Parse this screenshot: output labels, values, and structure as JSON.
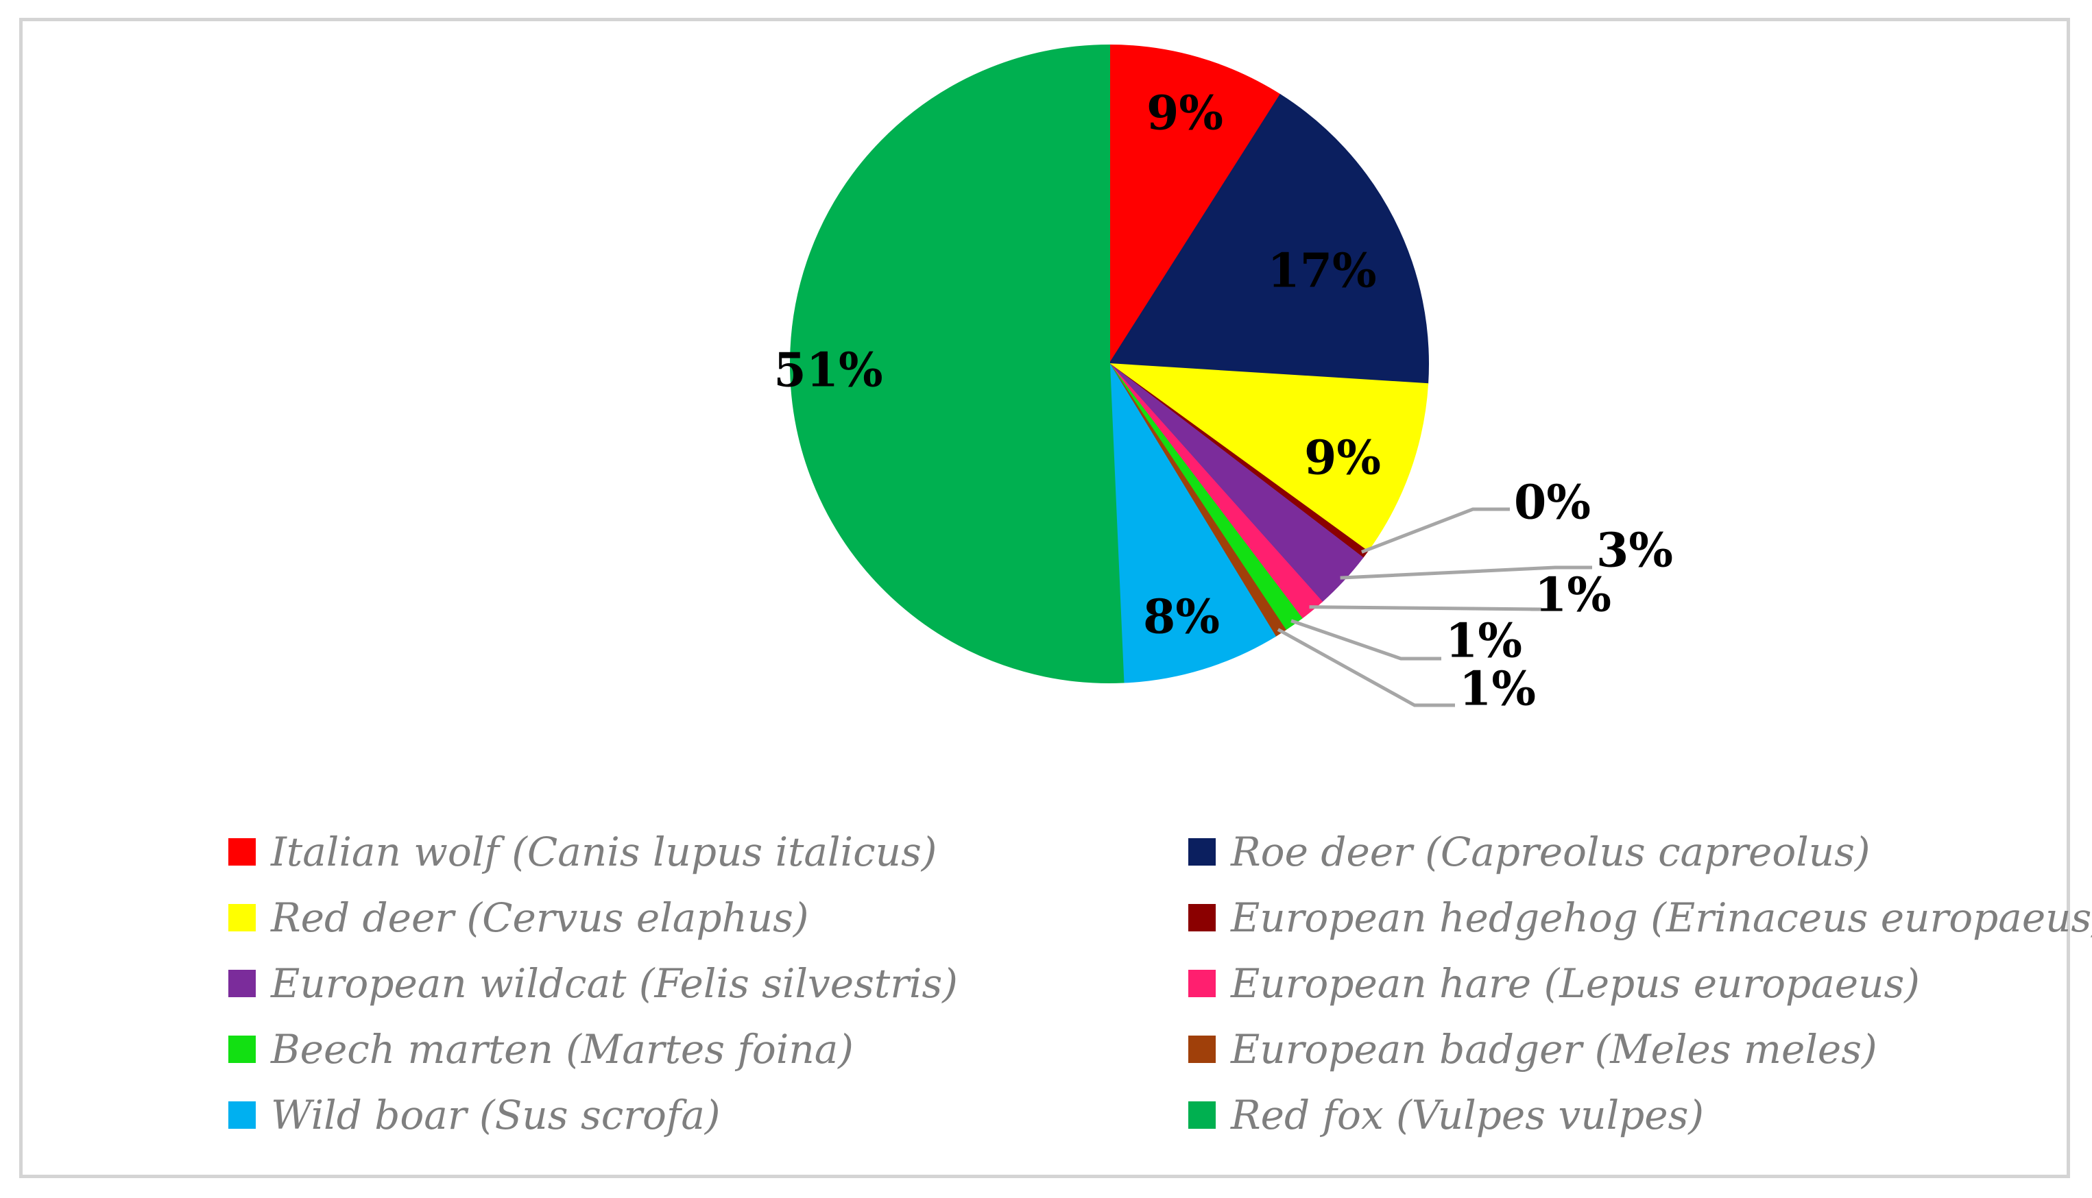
{
  "chart_data": {
    "type": "pie",
    "slices": [
      {
        "name": "Italian wolf (Canis lupus italicus)",
        "value": 9,
        "label": "9%",
        "color": "#ff0000"
      },
      {
        "name": "Roe deer (Capreolus capreolus)",
        "value": 17,
        "label": "17%",
        "color": "#0b1f5f"
      },
      {
        "name": "Red deer (Cervus elaphus)",
        "value": 9,
        "label": "9%",
        "color": "#ffff00"
      },
      {
        "name": "European hedgehog (Erinaceus europaeus)",
        "value": 0.4,
        "label": "0%",
        "color": "#8b0000"
      },
      {
        "name": "European wildcat (Felis silvestris)",
        "value": 3,
        "label": "3%",
        "color": "#7b2c9b"
      },
      {
        "name": "European hare (Lepus europaeus)",
        "value": 1.3,
        "label": "1%",
        "color": "#ff1f6f"
      },
      {
        "name": "Beech marten (Martes foina)",
        "value": 1,
        "label": "1%",
        "color": "#12e012"
      },
      {
        "name": "European badger (Meles meles)",
        "value": 0.6,
        "label": "1%",
        "color": "#a0400a"
      },
      {
        "name": "Wild boar (Sus scrofa)",
        "value": 8,
        "label": "8%",
        "color": "#00b0f0"
      },
      {
        "name": "Red fox (Vulpes vulpes)",
        "value": 50.7,
        "label": "51%",
        "color": "#00b050"
      }
    ],
    "legend_position": "bottom"
  }
}
